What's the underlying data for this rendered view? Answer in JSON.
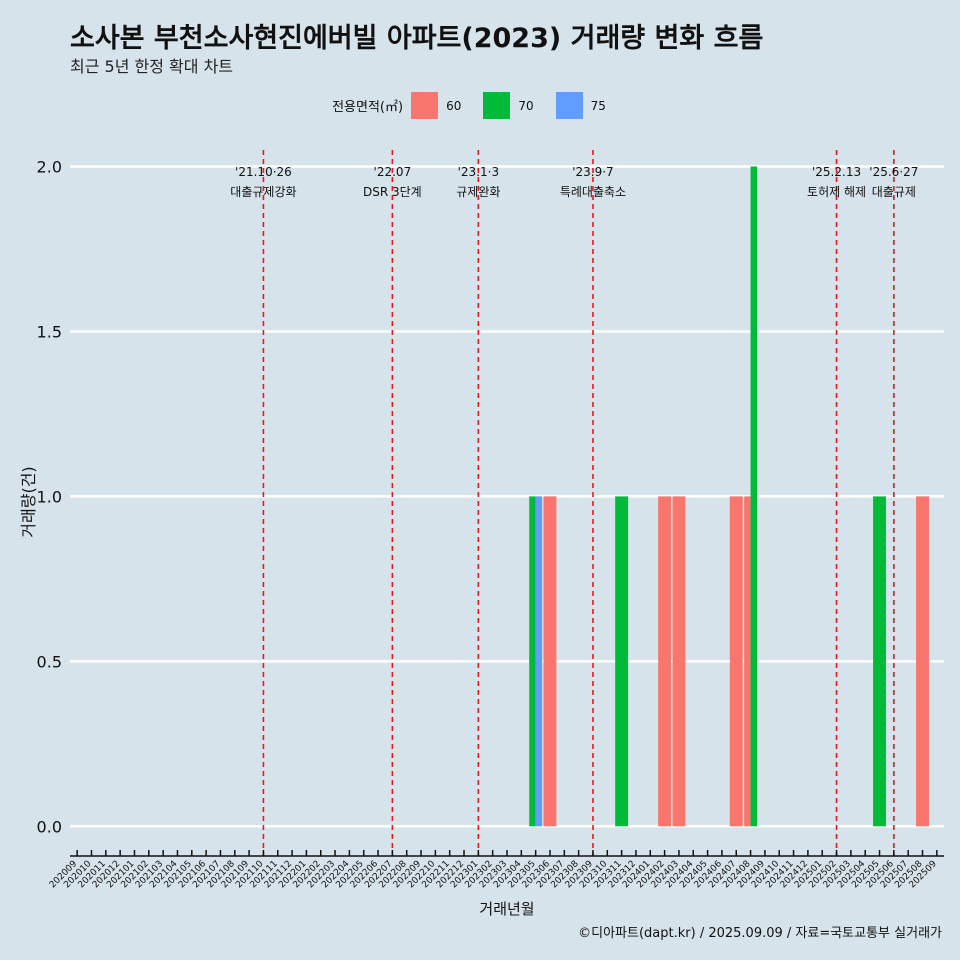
{
  "title": "소사본 부천소사현진에버빌 아파트(2023) 거래량 변화 흐름",
  "subtitle": "최근 5년 한정 확대 차트",
  "caption": "©디아파트(dapt.kr) / 2025.09.09 / 자료=국토교통부 실거래가",
  "legend": {
    "title": "전용면적(㎡)",
    "items": [
      {
        "label": "60",
        "color": "#f8766d"
      },
      {
        "label": "70",
        "color": "#00ba38"
      },
      {
        "label": "75",
        "color": "#619cff"
      }
    ]
  },
  "chart_data": {
    "type": "bar",
    "title": "소사본 부천소사현진에버빌 아파트(2023) 거래량 변화 흐름",
    "xlabel": "거래년월",
    "ylabel": "거래량(건)",
    "ylim": [
      -0.09,
      2.05
    ],
    "yticks": [
      "0.0",
      "0.5",
      "1.0",
      "1.5",
      "2.0"
    ],
    "categories": [
      "202009",
      "202010",
      "202011",
      "202012",
      "202101",
      "202102",
      "202103",
      "202104",
      "202105",
      "202106",
      "202107",
      "202108",
      "202109",
      "202110",
      "202111",
      "202112",
      "202201",
      "202202",
      "202203",
      "202204",
      "202205",
      "202206",
      "202207",
      "202208",
      "202209",
      "202210",
      "202211",
      "202212",
      "202301",
      "202302",
      "202303",
      "202304",
      "202305",
      "202306",
      "202307",
      "202308",
      "202309",
      "202310",
      "202311",
      "202312",
      "202401",
      "202402",
      "202403",
      "202404",
      "202405",
      "202406",
      "202407",
      "202408",
      "202409",
      "202410",
      "202411",
      "202412",
      "202501",
      "202502",
      "202503",
      "202504",
      "202505",
      "202506",
      "202507",
      "202508",
      "202509"
    ],
    "bars": [
      {
        "month": "202305",
        "series": "70",
        "value": 1
      },
      {
        "month": "202305",
        "series": "75",
        "value": 1
      },
      {
        "month": "202306",
        "series": "60",
        "value": 1
      },
      {
        "month": "202311",
        "series": "70",
        "value": 1
      },
      {
        "month": "202402",
        "series": "60",
        "value": 1
      },
      {
        "month": "202403",
        "series": "60",
        "value": 1
      },
      {
        "month": "202407",
        "series": "60",
        "value": 1
      },
      {
        "month": "202408",
        "series": "60",
        "value": 1
      },
      {
        "month": "202408",
        "series": "70",
        "value": 2
      },
      {
        "month": "202505",
        "series": "70",
        "value": 1
      },
      {
        "month": "202508",
        "series": "60",
        "value": 1
      }
    ],
    "events": [
      {
        "pos": 13.0,
        "date": "'21.10·26",
        "label": "대출규제강화"
      },
      {
        "pos": 22.0,
        "date": "'22.07",
        "label": "DSR 3단계"
      },
      {
        "pos": 28.0,
        "date": "'23.1·3",
        "label": "규제완화"
      },
      {
        "pos": 36.0,
        "date": "'23.9·7",
        "label": "특례대출축소"
      },
      {
        "pos": 53.0,
        "date": "'25.2.13",
        "label": "토허제 해제"
      },
      {
        "pos": 57.0,
        "date": "'25.6·27",
        "label": "대출규제"
      }
    ]
  }
}
